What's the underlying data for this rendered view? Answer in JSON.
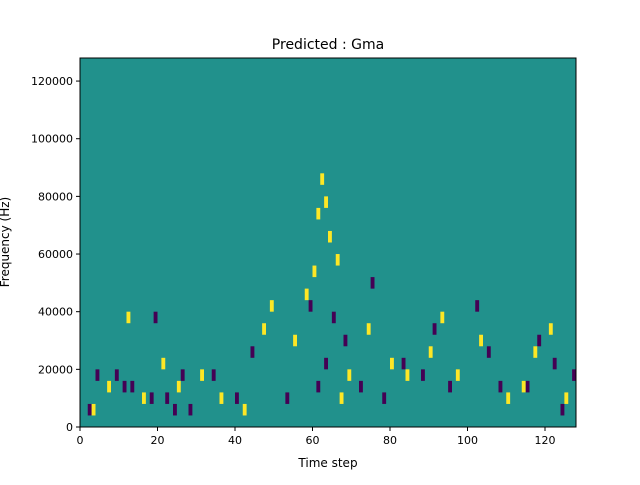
{
  "chart_data": {
    "type": "heatmap",
    "title": "Predicted : Gma",
    "xlabel": "Time step",
    "ylabel": "Frequency (Hz)",
    "xlim": [
      0,
      128
    ],
    "ylim": [
      0,
      128000
    ],
    "x_ticks": [
      0,
      20,
      40,
      60,
      80,
      100,
      120
    ],
    "x_tick_labels": [
      "0",
      "20",
      "40",
      "60",
      "80",
      "100",
      "120"
    ],
    "y_ticks": [
      0,
      20000,
      40000,
      60000,
      80000,
      100000,
      120000
    ],
    "y_tick_labels": [
      "0",
      "20000",
      "40000",
      "60000",
      "80000",
      "100000",
      "120000"
    ],
    "grid": false,
    "legend": "none",
    "n_time_steps": 128,
    "n_freq_bins": 32,
    "bin_height_hz": 4000,
    "colormap": {
      "0": "#440154",
      "1": "#21918c",
      "2": "#fde725"
    },
    "background_level": 1,
    "cells_low": [
      [
        2,
        1
      ],
      [
        4,
        4
      ],
      [
        9,
        4
      ],
      [
        11,
        3
      ],
      [
        13,
        3
      ],
      [
        18,
        2
      ],
      [
        19,
        9
      ],
      [
        22,
        2
      ],
      [
        24,
        1
      ],
      [
        26,
        4
      ],
      [
        28,
        1
      ],
      [
        34,
        4
      ],
      [
        40,
        2
      ],
      [
        44,
        6
      ],
      [
        53,
        2
      ],
      [
        59,
        10
      ],
      [
        61,
        3
      ],
      [
        63,
        5
      ],
      [
        65,
        9
      ],
      [
        68,
        7
      ],
      [
        72,
        3
      ],
      [
        75,
        12
      ],
      [
        78,
        2
      ],
      [
        83,
        5
      ],
      [
        88,
        4
      ],
      [
        91,
        8
      ],
      [
        95,
        3
      ],
      [
        102,
        10
      ],
      [
        105,
        6
      ],
      [
        108,
        3
      ],
      [
        115,
        3
      ],
      [
        118,
        7
      ],
      [
        122,
        5
      ],
      [
        124,
        1
      ],
      [
        127,
        4
      ]
    ],
    "cells_high": [
      [
        3,
        1
      ],
      [
        7,
        3
      ],
      [
        12,
        9
      ],
      [
        16,
        2
      ],
      [
        21,
        5
      ],
      [
        25,
        3
      ],
      [
        31,
        4
      ],
      [
        36,
        2
      ],
      [
        42,
        1
      ],
      [
        47,
        8
      ],
      [
        49,
        10
      ],
      [
        55,
        7
      ],
      [
        58,
        11
      ],
      [
        60,
        13
      ],
      [
        61,
        18
      ],
      [
        62,
        21
      ],
      [
        63,
        19
      ],
      [
        64,
        16
      ],
      [
        66,
        14
      ],
      [
        67,
        2
      ],
      [
        69,
        4
      ],
      [
        74,
        8
      ],
      [
        80,
        5
      ],
      [
        84,
        4
      ],
      [
        90,
        6
      ],
      [
        93,
        9
      ],
      [
        97,
        4
      ],
      [
        103,
        7
      ],
      [
        110,
        2
      ],
      [
        114,
        3
      ],
      [
        117,
        6
      ],
      [
        121,
        8
      ],
      [
        125,
        2
      ]
    ]
  }
}
